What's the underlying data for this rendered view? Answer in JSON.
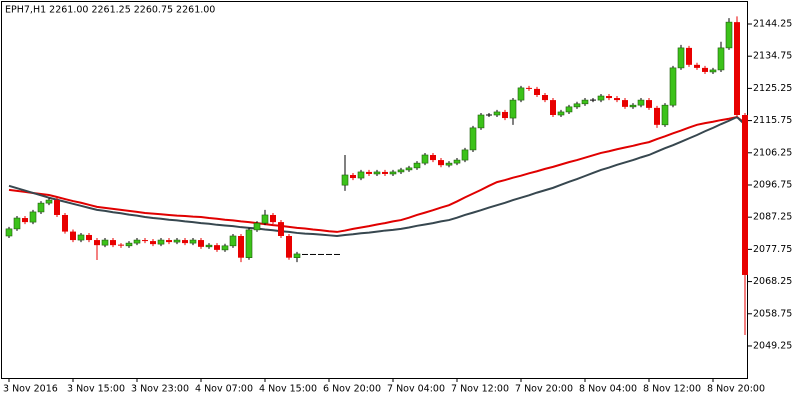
{
  "chart_data": {
    "type": "candlestick",
    "title": "EPH7,H1  2261.00 2261.25 2260.75 2261.00",
    "categories": [
      "3 Nov 2016",
      null,
      null,
      null,
      null,
      null,
      null,
      null,
      "3 Nov 15:00",
      null,
      null,
      null,
      null,
      null,
      null,
      null,
      "3 Nov 23:00",
      null,
      null,
      null,
      null,
      null,
      null,
      null,
      "4 Nov 07:00",
      null,
      null,
      null,
      null,
      null,
      null,
      null,
      "4 Nov 15:00",
      null,
      null,
      null,
      null,
      null,
      null,
      null,
      "6 Nov 20:00",
      null,
      null,
      null,
      null,
      null,
      null,
      null,
      "7 Nov 04:00",
      null,
      null,
      null,
      null,
      null,
      null,
      null,
      "7 Nov 12:00",
      null,
      null,
      null,
      null,
      null,
      null,
      null,
      "7 Nov 20:00",
      null,
      null,
      null,
      null,
      null,
      null,
      null,
      "8 Nov 04:00",
      null,
      null,
      null,
      null,
      null,
      null,
      null,
      "8 Nov 12:00",
      null,
      null,
      null,
      null,
      null,
      null,
      null,
      "8 Nov 20:00",
      null,
      null,
      null,
      null
    ],
    "open": [
      2081.7,
      2083.8,
      2087.0,
      2085.8,
      2088.8,
      2091.4,
      2092.3,
      2087.9,
      2083.0,
      2080.5,
      2082.0,
      2080.5,
      2079.0,
      2080.5,
      2079.0,
      2078.8,
      2079.6,
      2080.5,
      2080.2,
      2079.3,
      2080.5,
      2079.9,
      2080.5,
      2079.6,
      2080.5,
      2078.5,
      2079.0,
      2077.6,
      2078.8,
      2081.7,
      2075.3,
      2083.5,
      2085.5,
      2087.9,
      2085.8,
      2081.7,
      2075.3,
      2076.25,
      2076.25,
      2076.25,
      2076.25,
      2076.25,
      2096.7,
      2099.7,
      2098.8,
      2100.6,
      2100.0,
      2100.6,
      2100.0,
      2100.6,
      2101.2,
      2101.8,
      2103.2,
      2105.6,
      2104.1,
      2102.6,
      2103.2,
      2104.1,
      2107.1,
      2113.6,
      2117.4,
      2117.4,
      2118.3,
      2116.5,
      2121.8,
      2125.4,
      2125.1,
      2123.3,
      2121.8,
      2117.4,
      2118.3,
      2119.8,
      2120.7,
      2121.8,
      2121.8,
      2123.0,
      2122.4,
      2121.8,
      2119.8,
      2120.3,
      2121.8,
      2119.5,
      2114.5,
      2120.3,
      2131.3,
      2137.2,
      2132.2,
      2131.3,
      2130.1,
      2130.7,
      2137.2,
      2144.8,
      2117.4
    ],
    "high": [
      2084.4,
      2087.6,
      2087.6,
      2089.4,
      2092.0,
      2092.9,
      2092.9,
      2088.5,
      2083.6,
      2082.6,
      2082.6,
      2081.1,
      2081.1,
      2081.1,
      2079.6,
      2080.2,
      2081.1,
      2081.1,
      2080.8,
      2081.1,
      2081.1,
      2081.1,
      2081.1,
      2081.1,
      2081.1,
      2079.6,
      2079.6,
      2079.4,
      2082.3,
      2082.3,
      2084.1,
      2086.1,
      2089.4,
      2088.5,
      2086.4,
      2082.3,
      2077.0,
      2076.25,
      2076.25,
      2076.25,
      2076.25,
      2076.25,
      2105.6,
      2100.3,
      2101.2,
      2101.2,
      2101.2,
      2101.2,
      2101.2,
      2101.8,
      2102.4,
      2103.8,
      2106.2,
      2106.2,
      2104.7,
      2103.8,
      2104.7,
      2107.7,
      2114.2,
      2118.0,
      2118.0,
      2118.9,
      2118.9,
      2122.4,
      2126.0,
      2126.0,
      2125.7,
      2123.9,
      2122.4,
      2118.9,
      2120.4,
      2121.3,
      2122.4,
      2122.4,
      2123.6,
      2123.6,
      2123.0,
      2122.4,
      2120.9,
      2122.4,
      2122.4,
      2120.1,
      2120.9,
      2131.9,
      2138.1,
      2137.8,
      2132.8,
      2131.9,
      2131.3,
      2139.0,
      2146.0,
      2146.5,
      2118.0
    ],
    "low": [
      2081.1,
      2083.2,
      2085.2,
      2085.2,
      2088.2,
      2090.8,
      2087.3,
      2082.4,
      2079.9,
      2079.9,
      2079.9,
      2074.6,
      2078.4,
      2078.4,
      2078.2,
      2078.2,
      2079.0,
      2079.6,
      2078.7,
      2078.7,
      2079.3,
      2079.3,
      2079.0,
      2079.0,
      2077.9,
      2077.9,
      2077.0,
      2077.0,
      2078.2,
      2074.0,
      2074.7,
      2082.9,
      2084.9,
      2085.2,
      2081.1,
      2074.7,
      2074.0,
      2076.25,
      2076.25,
      2076.25,
      2076.25,
      2076.25,
      2095.0,
      2098.2,
      2098.2,
      2099.4,
      2099.4,
      2099.4,
      2099.4,
      2100.0,
      2100.6,
      2101.2,
      2102.6,
      2103.5,
      2102.0,
      2102.0,
      2102.6,
      2103.5,
      2106.5,
      2113.0,
      2116.8,
      2116.8,
      2115.9,
      2114.5,
      2121.2,
      2124.5,
      2122.7,
      2121.2,
      2116.8,
      2116.8,
      2117.7,
      2119.2,
      2120.1,
      2121.2,
      2121.2,
      2121.8,
      2121.2,
      2119.2,
      2119.2,
      2119.7,
      2118.9,
      2113.6,
      2113.9,
      2119.7,
      2130.7,
      2131.6,
      2130.7,
      2129.5,
      2129.5,
      2130.1,
      2136.6,
      2116.8,
      2052.5
    ],
    "close": [
      2083.8,
      2087.0,
      2085.8,
      2088.8,
      2091.4,
      2092.3,
      2087.9,
      2083.0,
      2080.5,
      2082.0,
      2080.5,
      2079.0,
      2080.5,
      2079.0,
      2078.8,
      2079.6,
      2080.5,
      2080.2,
      2079.3,
      2080.5,
      2079.9,
      2080.5,
      2079.6,
      2080.5,
      2078.5,
      2079.0,
      2077.6,
      2078.8,
      2081.7,
      2075.3,
      2083.5,
      2085.5,
      2087.9,
      2085.8,
      2081.7,
      2075.3,
      2076.4,
      2076.25,
      2076.25,
      2076.25,
      2076.25,
      2076.25,
      2099.7,
      2098.8,
      2100.6,
      2100.0,
      2100.6,
      2100.0,
      2100.6,
      2101.2,
      2101.8,
      2103.2,
      2105.6,
      2104.1,
      2102.6,
      2103.2,
      2104.1,
      2107.1,
      2113.6,
      2117.4,
      2117.4,
      2118.3,
      2116.5,
      2121.8,
      2125.4,
      2125.1,
      2123.3,
      2121.8,
      2117.4,
      2118.3,
      2119.8,
      2120.7,
      2121.8,
      2121.8,
      2123.0,
      2122.4,
      2121.8,
      2119.8,
      2120.3,
      2121.8,
      2119.5,
      2114.5,
      2120.3,
      2131.3,
      2137.2,
      2132.2,
      2131.3,
      2130.1,
      2130.7,
      2137.2,
      2144.8,
      2117.4,
      2070.2
    ],
    "up_color": "#3cc21a",
    "down_color": "#e80000",
    "doji_color": "#000000",
    "lines": [
      {
        "color": "#e00000",
        "values": [
          2095.3,
          2095.0,
          2094.7,
          2094.4,
          2094.1,
          2093.8,
          2093.2,
          2092.6,
          2092.0,
          2091.5,
          2090.9,
          2090.3,
          2090.0,
          2089.7,
          2089.4,
          2089.1,
          2088.8,
          2088.5,
          2088.3,
          2088.1,
          2087.9,
          2087.7,
          2087.6,
          2087.4,
          2087.3,
          2087.0,
          2086.8,
          2086.5,
          2086.3,
          2086.0,
          2085.8,
          2085.5,
          2085.2,
          2084.9,
          2084.7,
          2084.4,
          2084.1,
          2083.9,
          2083.6,
          2083.4,
          2083.1,
          2082.9,
          2083.3,
          2083.8,
          2084.2,
          2084.6,
          2085.1,
          2085.5,
          2086.0,
          2086.4,
          2087.1,
          2087.9,
          2088.6,
          2089.3,
          2090.1,
          2090.8,
          2091.9,
          2093.1,
          2094.2,
          2095.3,
          2096.5,
          2097.6,
          2098.2,
          2098.9,
          2099.5,
          2100.2,
          2100.8,
          2101.5,
          2102.1,
          2102.8,
          2103.5,
          2104.1,
          2104.8,
          2105.5,
          2106.2,
          2106.7,
          2107.3,
          2107.8,
          2108.3,
          2108.9,
          2109.4,
          2110.3,
          2111.1,
          2112.0,
          2112.8,
          2113.7,
          2114.5,
          2115.0,
          2115.4,
          2115.9,
          2116.3,
          2116.8,
          2115.0
        ]
      },
      {
        "color": "#37474f",
        "values": [
          2096.5,
          2095.8,
          2095.1,
          2094.4,
          2093.7,
          2093.0,
          2092.4,
          2091.8,
          2091.2,
          2090.6,
          2090.0,
          2089.4,
          2089.1,
          2088.7,
          2088.4,
          2088.0,
          2087.7,
          2087.3,
          2087.0,
          2086.8,
          2086.5,
          2086.3,
          2086.0,
          2085.8,
          2085.5,
          2085.3,
          2085.0,
          2084.8,
          2084.6,
          2084.3,
          2084.1,
          2083.9,
          2083.6,
          2083.4,
          2083.1,
          2082.9,
          2082.6,
          2082.4,
          2082.3,
          2082.1,
          2081.9,
          2081.7,
          2082.0,
          2082.2,
          2082.5,
          2082.7,
          2083.0,
          2083.3,
          2083.5,
          2083.8,
          2084.2,
          2084.7,
          2085.1,
          2085.5,
          2086.0,
          2086.4,
          2087.1,
          2087.9,
          2088.6,
          2089.3,
          2090.1,
          2090.8,
          2091.5,
          2092.3,
          2093.0,
          2093.7,
          2094.5,
          2095.2,
          2095.9,
          2096.8,
          2097.7,
          2098.5,
          2099.4,
          2100.3,
          2101.2,
          2101.9,
          2102.7,
          2103.4,
          2104.1,
          2104.9,
          2105.6,
          2106.6,
          2107.6,
          2108.5,
          2109.5,
          2110.5,
          2111.5,
          2112.6,
          2113.6,
          2114.7,
          2115.7,
          2116.8,
          2114.5
        ]
      }
    ],
    "ylim": [
      2039.8,
      2151.33
    ],
    "yticks": [
      2144.25,
      2134.75,
      2125.25,
      2115.75,
      2106.25,
      2096.75,
      2087.25,
      2077.75,
      2068.25,
      2058.75,
      2049.25
    ]
  }
}
